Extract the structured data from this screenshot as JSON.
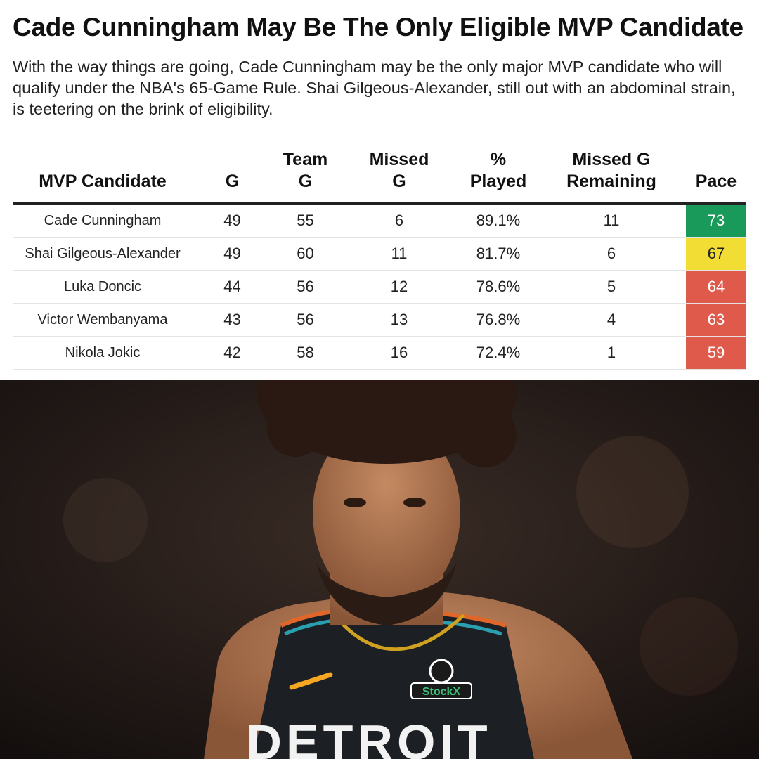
{
  "title": "Cade Cunningham May Be The Only Eligible MVP Candidate",
  "subtitle": "With the way things are going, Cade Cunningham may be the only major MVP candidate who will qualify under the NBA's 65-Game Rule. Shai Gilgeous-Alexander, still out with an abdominal strain, is teetering on the brink of eligibility.",
  "table": {
    "headers": {
      "candidate": "MVP Candidate",
      "g": "G",
      "team_g_1": "Team",
      "team_g_2": "G",
      "missed_g_1": "Missed",
      "missed_g_2": "G",
      "pct_played_1": "%",
      "pct_played_2": "Played",
      "missed_remaining_1": "Missed G",
      "missed_remaining_2": "Remaining",
      "pace": "Pace"
    },
    "rows": [
      {
        "name": "Cade Cunningham",
        "g": "49",
        "team_g": "55",
        "missed_g": "6",
        "pct_played": "89.1%",
        "missed_remaining": "11",
        "pace": "73",
        "pace_color": "#1a9a5a"
      },
      {
        "name": "Shai Gilgeous-Alexander",
        "g": "49",
        "team_g": "60",
        "missed_g": "11",
        "pct_played": "81.7%",
        "missed_remaining": "6",
        "pace": "67",
        "pace_color": "#f2dd35"
      },
      {
        "name": "Luka Doncic",
        "g": "44",
        "team_g": "56",
        "missed_g": "12",
        "pct_played": "78.6%",
        "missed_remaining": "5",
        "pace": "64",
        "pace_color": "#df5a4a"
      },
      {
        "name": "Victor Wembanyama",
        "g": "43",
        "team_g": "56",
        "missed_g": "13",
        "pct_played": "76.8%",
        "missed_remaining": "4",
        "pace": "63",
        "pace_color": "#df5a4a"
      },
      {
        "name": "Nikola Jokic",
        "g": "42",
        "team_g": "58",
        "missed_g": "16",
        "pct_played": "72.4%",
        "missed_remaining": "1",
        "pace": "59",
        "pace_color": "#df5a4a"
      }
    ]
  },
  "photo": {
    "jersey_text": "DETROIT",
    "sponsor_patch": "StockX"
  }
}
